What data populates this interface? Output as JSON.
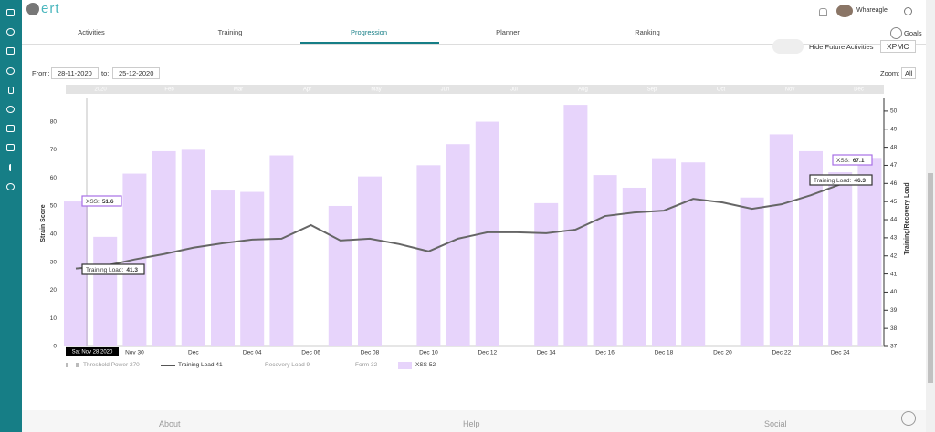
{
  "header": {
    "brand": "ert",
    "user": "Whareagle"
  },
  "tabs": [
    "Activities",
    "Training",
    "Progression",
    "Planner",
    "Ranking"
  ],
  "goals": "Goals",
  "controls": {
    "hide_future": "Hide Future Activities",
    "view": "XPMC",
    "from_label": "From:",
    "from": "28-11-2020",
    "to_label": "to:",
    "to": "25-12-2020",
    "zoom_label": "Zoom:",
    "zoom": "All"
  },
  "chart_data": {
    "type": "bar",
    "navigator": [
      "2020",
      "Feb",
      "Mar",
      "Apr",
      "May",
      "Jun",
      "Jul",
      "Aug",
      "Sep",
      "Oct",
      "Nov",
      "Dec"
    ],
    "categories": [
      null,
      null,
      "Nov 30",
      null,
      "Dec",
      null,
      "Dec 04",
      null,
      "Dec 06",
      null,
      "Dec 08",
      null,
      "Dec 10",
      null,
      "Dec 12",
      null,
      "Dec 14",
      null,
      "Dec 16",
      null,
      "Dec 18",
      null,
      "Dec 20",
      null,
      "Dec 22",
      null,
      "Dec 24",
      null
    ],
    "crosshair_label": "Sat Nov 28 2020",
    "ylabel": "Strain Score",
    "y2label": "Training/Recovery Load",
    "ylim": [
      0,
      88.3
    ],
    "yticks": [
      0,
      10,
      20,
      30,
      40,
      50,
      60,
      70,
      80
    ],
    "y2lim": [
      37,
      50.7
    ],
    "y2ticks": [
      37,
      38,
      39,
      40,
      41,
      42,
      43,
      44,
      45,
      46,
      47,
      48,
      49,
      50
    ],
    "series": [
      {
        "name": "XSS",
        "type": "bar",
        "color": "#e7d4fb",
        "values": [
          51.6,
          39,
          61.5,
          69.5,
          70,
          55.5,
          55,
          68,
          null,
          50,
          60.5,
          null,
          64.5,
          72,
          80,
          null,
          51,
          86,
          61,
          56.5,
          67,
          65.5,
          null,
          53,
          75.5,
          69.5,
          62,
          67.1
        ]
      },
      {
        "name": "Training Load",
        "type": "line",
        "axis": "y2",
        "color": "#666666",
        "values": [
          41.3,
          41.45,
          41.8,
          42.1,
          42.45,
          42.7,
          42.9,
          42.95,
          43.7,
          42.85,
          42.95,
          42.65,
          42.25,
          42.95,
          43.3,
          43.3,
          43.25,
          43.45,
          44.2,
          44.4,
          44.5,
          45.15,
          44.95,
          44.6,
          44.85,
          45.35,
          45.95,
          46.3
        ]
      }
    ],
    "tooltips": [
      {
        "label": "XSS:",
        "value": 51.6
      },
      {
        "label": "Training Load:",
        "value": 41.3
      },
      {
        "label": "XSS:",
        "value": 67.1
      },
      {
        "label": "Training Load:",
        "value": 46.3
      }
    ],
    "legend": [
      {
        "label": "Threshold Power",
        "value": 270
      },
      {
        "label": "Training Load",
        "value": 41
      },
      {
        "label": "Recovery Load",
        "value": 9
      },
      {
        "label": "Form",
        "value": 32
      },
      {
        "label": "XSS",
        "value": 52
      }
    ]
  },
  "footer": [
    "About",
    "Help",
    "Social"
  ]
}
